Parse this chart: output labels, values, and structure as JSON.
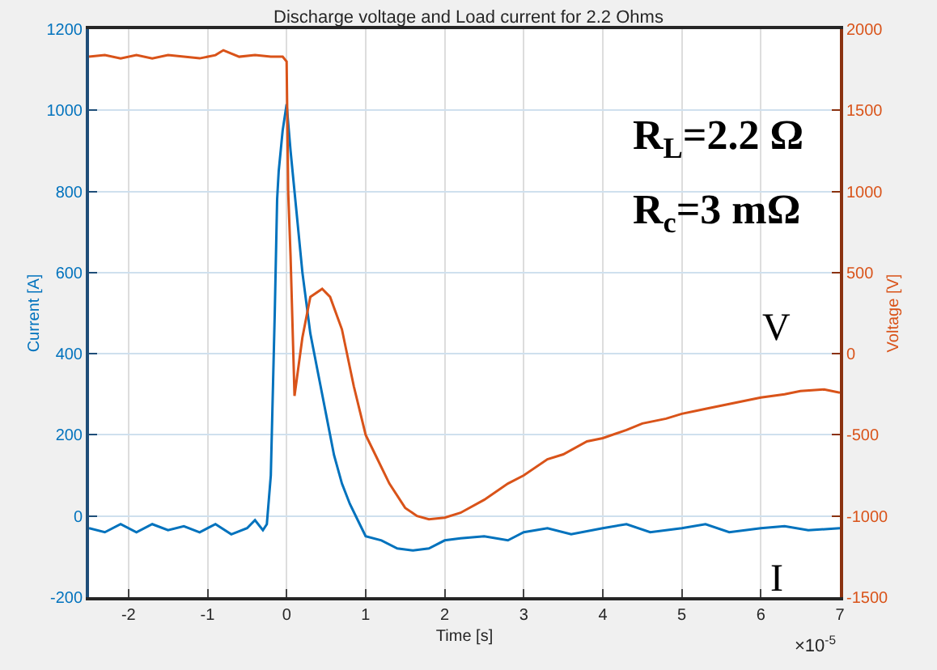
{
  "chart_data": {
    "type": "line",
    "title": "Discharge voltage and Load current for 2.2 Ohms",
    "xlabel": "Time [s]",
    "ylabel": "Current [A]",
    "y2label": "Voltage [V]",
    "annotations": [
      "R$_{L}$=2.2 Ω",
      "R$_{c}$=3 mΩ",
      "×10$^{-5}$"
    ],
    "xlim": [
      -2.5,
      7
    ],
    "xticks": [
      -2,
      -1,
      0,
      1,
      2,
      3,
      4,
      5,
      6,
      7
    ],
    "ylim": [
      -200,
      1200
    ],
    "yticks": [
      -200,
      0,
      200,
      400,
      600,
      800,
      1000,
      1200
    ],
    "y2lim": [
      -1500,
      2000
    ],
    "y2ticks": [
      -1500,
      -1000,
      -500,
      0,
      500,
      1000,
      1500,
      2000
    ],
    "grid": true,
    "legend": false,
    "marker": "none",
    "line_style": "solid",
    "series": [
      {
        "name": "I",
        "color": "#0072bd",
        "axis": "y",
        "x": [
          -2.5,
          -2.3,
          -2.1,
          -1.9,
          -1.7,
          -1.5,
          -1.3,
          -1.1,
          -0.9,
          -0.7,
          -0.5,
          -0.4,
          -0.3,
          -0.25,
          -0.2,
          -0.15,
          -0.12,
          -0.1,
          -0.05,
          0,
          0.05,
          0.1,
          0.2,
          0.3,
          0.4,
          0.5,
          0.6,
          0.7,
          0.8,
          0.9,
          1.0,
          1.2,
          1.4,
          1.6,
          1.8,
          2.0,
          2.2,
          2.5,
          2.8,
          3.0,
          3.3,
          3.6,
          4.0,
          4.3,
          4.6,
          5.0,
          5.3,
          5.6,
          6.0,
          6.3,
          6.6,
          7.0
        ],
        "values": [
          -30,
          -40,
          -20,
          -40,
          -20,
          -35,
          -25,
          -40,
          -20,
          -45,
          -30,
          -10,
          -35,
          -20,
          100,
          500,
          780,
          850,
          950,
          1015,
          900,
          800,
          600,
          450,
          350,
          250,
          150,
          80,
          30,
          -10,
          -50,
          -60,
          -80,
          -85,
          -80,
          -60,
          -55,
          -50,
          -60,
          -40,
          -30,
          -45,
          -30,
          -20,
          -40,
          -30,
          -20,
          -40,
          -30,
          -25,
          -35,
          -30
        ]
      },
      {
        "name": "V",
        "color": "#d95319",
        "axis": "y2",
        "x": [
          -2.5,
          -2.3,
          -2.1,
          -1.9,
          -1.7,
          -1.5,
          -1.3,
          -1.1,
          -0.9,
          -0.8,
          -0.6,
          -0.4,
          -0.2,
          -0.05,
          0,
          0.02,
          0.05,
          0.1,
          0.2,
          0.3,
          0.45,
          0.55,
          0.7,
          0.85,
          1.0,
          1.15,
          1.3,
          1.5,
          1.65,
          1.8,
          2.0,
          2.2,
          2.5,
          2.8,
          3.0,
          3.3,
          3.5,
          3.8,
          4.0,
          4.3,
          4.5,
          4.8,
          5.0,
          5.3,
          5.5,
          5.8,
          6.0,
          6.3,
          6.5,
          6.8,
          7.0
        ],
        "values": [
          1830,
          1840,
          1820,
          1840,
          1820,
          1840,
          1830,
          1820,
          1840,
          1870,
          1830,
          1840,
          1830,
          1830,
          1800,
          1000,
          600,
          -260,
          100,
          350,
          400,
          350,
          150,
          -200,
          -500,
          -650,
          -800,
          -950,
          -1000,
          -1020,
          -1010,
          -980,
          -900,
          -800,
          -750,
          -650,
          -620,
          -540,
          -520,
          -470,
          -430,
          -400,
          -370,
          -340,
          -320,
          -290,
          -270,
          -250,
          -230,
          -220,
          -240
        ]
      }
    ]
  }
}
